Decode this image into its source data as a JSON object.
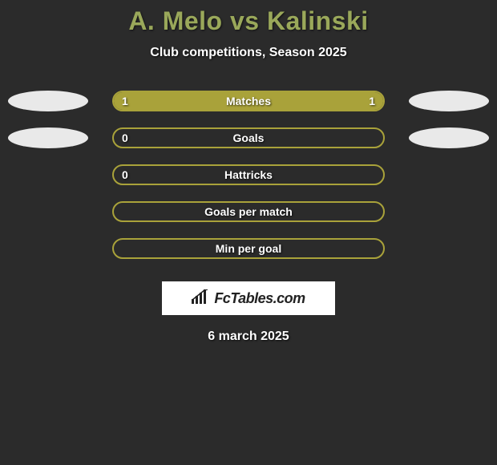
{
  "background_color": "#2b2b2b",
  "title": {
    "text": "A. Melo vs Kalinski",
    "color": "#9aa85a",
    "fontsize": 32
  },
  "subtitle": {
    "text": "Club competitions, Season 2025",
    "color": "#ffffff",
    "fontsize": 16
  },
  "ellipse_color": "#e9e9e9",
  "bar_style": {
    "border_color": "#a9a23a",
    "fill_left_color": "#a9a23a",
    "fill_right_color": "#a9a23a",
    "label_color": "#ffffff",
    "value_color": "#ffffff",
    "height": 26,
    "border_radius": 14
  },
  "rows": [
    {
      "label": "Matches",
      "left_value": "1",
      "right_value": "1",
      "left_fill_pct": 50,
      "right_fill_pct": 50,
      "show_left_ellipse": true,
      "show_right_ellipse": true
    },
    {
      "label": "Goals",
      "left_value": "0",
      "right_value": "",
      "left_fill_pct": 0,
      "right_fill_pct": 0,
      "show_left_ellipse": true,
      "show_right_ellipse": true
    },
    {
      "label": "Hattricks",
      "left_value": "0",
      "right_value": "",
      "left_fill_pct": 0,
      "right_fill_pct": 0,
      "show_left_ellipse": false,
      "show_right_ellipse": false
    },
    {
      "label": "Goals per match",
      "left_value": "",
      "right_value": "",
      "left_fill_pct": 0,
      "right_fill_pct": 0,
      "show_left_ellipse": false,
      "show_right_ellipse": false
    },
    {
      "label": "Min per goal",
      "left_value": "",
      "right_value": "",
      "left_fill_pct": 0,
      "right_fill_pct": 0,
      "show_left_ellipse": false,
      "show_right_ellipse": false
    }
  ],
  "logo": {
    "text": "FcTables.com",
    "background": "#ffffff",
    "text_color": "#222222"
  },
  "date": {
    "text": "6 march 2025",
    "color": "#ffffff",
    "fontsize": 16
  }
}
